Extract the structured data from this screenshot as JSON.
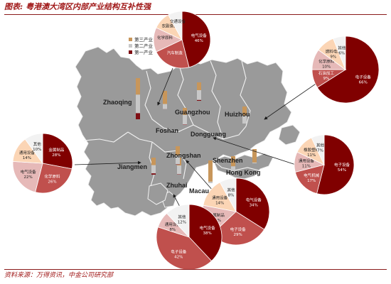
{
  "title": {
    "prefix": "图表:",
    "text": "粤港澳大湾区内部产业结构互补性强"
  },
  "footer": {
    "text": "资料来源：万得资讯，中金公司研究部"
  },
  "colors": {
    "sea": "#ffffff",
    "land": "#9a9a9a",
    "border": "#f2f2f2",
    "primary": "#7f0e14",
    "secondary": "#c8c8c8",
    "tertiary": "#c8965a",
    "pie_dark": "#800000",
    "pie_mid": "#c0504d",
    "pie_light": "#e6b9b8",
    "pie_peach": "#fbd5b5",
    "pie_pale": "#f2f2f2",
    "arrow": "#1a1a1a"
  },
  "legend": {
    "items": [
      {
        "label": "第三产业",
        "color_key": "tertiary"
      },
      {
        "label": "第二产业",
        "color_key": "secondary"
      },
      {
        "label": "第一产业",
        "color_key": "primary"
      }
    ]
  },
  "cities": [
    {
      "id": "zhaoqing",
      "name": "Zhaoqing",
      "shares": [
        0.15,
        0.45,
        0.4
      ]
    },
    {
      "id": "guangzhou",
      "name": "Guangzhou",
      "shares": [
        0.01,
        0.28,
        0.71
      ]
    },
    {
      "id": "huizhou",
      "name": "Huizhou",
      "shares": [
        0.05,
        0.53,
        0.42
      ]
    },
    {
      "id": "foshan",
      "name": "Foshan",
      "shares": [
        0.02,
        0.57,
        0.41
      ]
    },
    {
      "id": "dongguang",
      "name": "Dongguang",
      "shares": [
        0.0,
        0.47,
        0.53
      ]
    },
    {
      "id": "jiangmen",
      "name": "Jiangmen",
      "shares": [
        0.08,
        0.48,
        0.44
      ]
    },
    {
      "id": "zhongshan",
      "name": "Zhongshan",
      "shares": [
        0.02,
        0.52,
        0.46
      ]
    },
    {
      "id": "shenzhen",
      "name": "Shenzhen",
      "shares": [
        0.0,
        0.41,
        0.59
      ]
    },
    {
      "id": "hongkong",
      "name": "Hong Kong",
      "shares": [
        0.0,
        0.07,
        0.93
      ]
    },
    {
      "id": "zhuhai",
      "name": "Zhuhai",
      "shares": [
        0.02,
        0.48,
        0.5
      ]
    },
    {
      "id": "macau",
      "name": "Macau",
      "shares": [
        0.0,
        0.06,
        0.94
      ]
    }
  ],
  "pies": [
    {
      "id": "guangzhou-pie",
      "slices": [
        {
          "label": "电气设备",
          "pct": "46%",
          "value": 46,
          "color_key": "pie_dark"
        },
        {
          "label": "汽车制造",
          "pct": "",
          "value": 22,
          "color_key": "pie_mid"
        },
        {
          "label": "化学原料",
          "pct": "",
          "value": 14,
          "color_key": "pie_light"
        },
        {
          "label": "农副食品",
          "pct": "",
          "value": 10,
          "color_key": "pie_peach"
        },
        {
          "label": "交通设备",
          "pct": "",
          "value": 8,
          "color_key": "pie_pale"
        }
      ]
    },
    {
      "id": "huizhou-pie",
      "slices": [
        {
          "label": "电子设备",
          "pct": "66%",
          "value": 66,
          "color_key": "pie_dark"
        },
        {
          "label": "石油加工",
          "pct": "9%",
          "value": 9,
          "color_key": "pie_mid"
        },
        {
          "label": "化学原料",
          "pct": "10%",
          "value": 10,
          "color_key": "pie_light"
        },
        {
          "label": "燃料电池",
          "pct": "9%",
          "value": 9,
          "color_key": "pie_peach"
        },
        {
          "label": "其他",
          "pct": "6%",
          "value": 6,
          "color_key": "pie_pale"
        }
      ]
    },
    {
      "id": "jiangmen-pie",
      "slices": [
        {
          "label": "金属制品",
          "pct": "28%",
          "value": 28,
          "color_key": "pie_dark"
        },
        {
          "label": "化学原料",
          "pct": "26%",
          "value": 26,
          "color_key": "pie_mid"
        },
        {
          "label": "电气设备",
          "pct": "22%",
          "value": 22,
          "color_key": "pie_light"
        },
        {
          "label": "通用设备",
          "pct": "14%",
          "value": 14,
          "color_key": "pie_peach"
        },
        {
          "label": "其他",
          "pct": "10%",
          "value": 10,
          "color_key": "pie_pale"
        }
      ]
    },
    {
      "id": "dongguan-pie",
      "slices": [
        {
          "label": "电子设备",
          "pct": "54%",
          "value": 54,
          "color_key": "pie_dark"
        },
        {
          "label": "电气机械",
          "pct": "17%",
          "value": 17,
          "color_key": "pie_mid"
        },
        {
          "label": "通用设备",
          "pct": "11%",
          "value": 11,
          "color_key": "pie_light"
        },
        {
          "label": "橡胶塑料",
          "pct": "11%",
          "value": 11,
          "color_key": "pie_peach"
        },
        {
          "label": "其他",
          "pct": "7%",
          "value": 7,
          "color_key": "pie_pale"
        }
      ]
    },
    {
      "id": "zhongshan-pie",
      "slices": [
        {
          "label": "电气设备",
          "pct": "34%",
          "value": 34,
          "color_key": "pie_dark"
        },
        {
          "label": "电子设备",
          "pct": "29%",
          "value": 29,
          "color_key": "pie_mid"
        },
        {
          "label": "金属制品",
          "pct": "15%",
          "value": 15,
          "color_key": "pie_light"
        },
        {
          "label": "通用设备",
          "pct": "14%",
          "value": 14,
          "color_key": "pie_peach"
        },
        {
          "label": "其他",
          "pct": "8%",
          "value": 8,
          "color_key": "pie_pale"
        }
      ]
    },
    {
      "id": "zhuhai-pie",
      "slices": [
        {
          "label": "电气设备",
          "pct": "38%",
          "value": 38,
          "color_key": "pie_dark"
        },
        {
          "label": "电子设备",
          "pct": "42%",
          "value": 42,
          "color_key": "pie_mid"
        },
        {
          "label": "通用设备",
          "pct": "8%",
          "value": 8,
          "color_key": "pie_light"
        },
        {
          "label": "其他",
          "pct": "12%",
          "value": 12,
          "color_key": "pie_pale"
        }
      ]
    }
  ]
}
